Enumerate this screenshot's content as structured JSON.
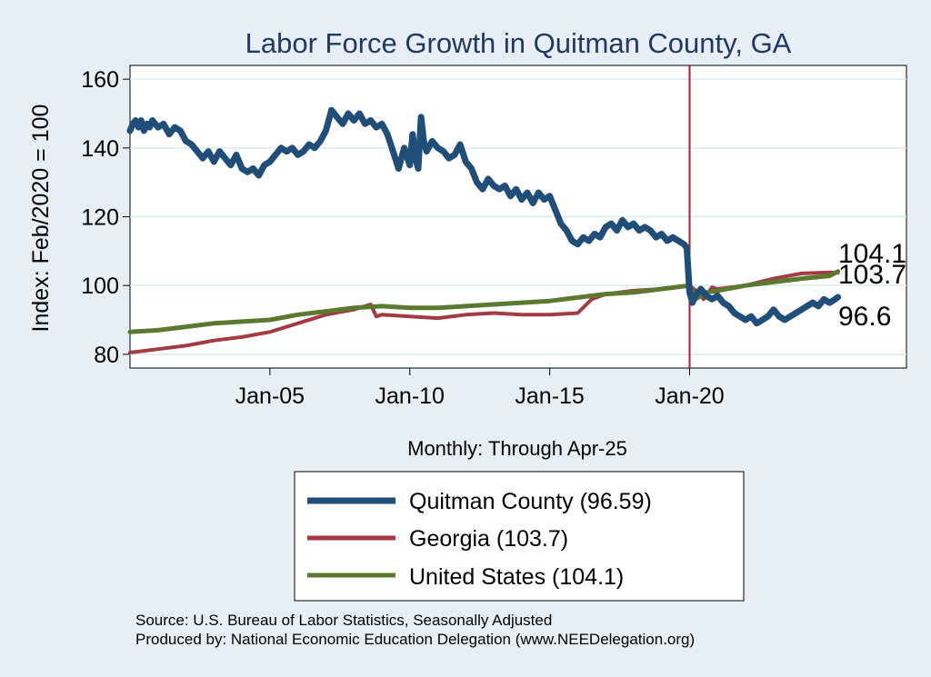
{
  "chart_data": {
    "type": "line",
    "title": "Labor Force Growth in Quitman  County, GA",
    "ylabel": "Index: Feb/2020 = 100",
    "xlabel": "Monthly: Through Apr-25",
    "ylim": [
      76,
      164
    ],
    "xlim": [
      2000.0,
      2027.75
    ],
    "yticks": [
      80,
      100,
      120,
      140,
      160
    ],
    "xticks": [
      {
        "value": 2005.0,
        "label": "Jan-05"
      },
      {
        "value": 2010.0,
        "label": "Jan-10"
      },
      {
        "value": 2015.0,
        "label": "Jan-15"
      },
      {
        "value": 2020.0,
        "label": "Jan-20"
      }
    ],
    "reference_line": {
      "x": 2020.0,
      "color": "#c0142c"
    },
    "series": [
      {
        "name": "Quitman  County",
        "legend": "Quitman  County (96.59)",
        "color": "#1f4e79",
        "width": 7,
        "end_label": "96.6",
        "points": [
          [
            2000.0,
            145
          ],
          [
            2000.1,
            147
          ],
          [
            2000.2,
            148
          ],
          [
            2000.3,
            146
          ],
          [
            2000.4,
            148
          ],
          [
            2000.5,
            145
          ],
          [
            2000.6,
            147
          ],
          [
            2000.7,
            146
          ],
          [
            2000.8,
            148
          ],
          [
            2001.0,
            146
          ],
          [
            2001.2,
            147
          ],
          [
            2001.4,
            144
          ],
          [
            2001.6,
            146
          ],
          [
            2001.8,
            145
          ],
          [
            2002.0,
            142
          ],
          [
            2002.2,
            141
          ],
          [
            2002.4,
            139
          ],
          [
            2002.6,
            137
          ],
          [
            2002.8,
            139
          ],
          [
            2003.0,
            136
          ],
          [
            2003.2,
            139
          ],
          [
            2003.4,
            137
          ],
          [
            2003.6,
            135
          ],
          [
            2003.8,
            138
          ],
          [
            2004.0,
            134
          ],
          [
            2004.2,
            133
          ],
          [
            2004.4,
            134
          ],
          [
            2004.6,
            132
          ],
          [
            2004.8,
            135
          ],
          [
            2005.0,
            136
          ],
          [
            2005.2,
            138
          ],
          [
            2005.4,
            140
          ],
          [
            2005.6,
            139
          ],
          [
            2005.8,
            140
          ],
          [
            2006.0,
            138
          ],
          [
            2006.2,
            139
          ],
          [
            2006.4,
            141
          ],
          [
            2006.6,
            140
          ],
          [
            2006.8,
            142
          ],
          [
            2007.0,
            145
          ],
          [
            2007.2,
            151
          ],
          [
            2007.4,
            149
          ],
          [
            2007.6,
            147
          ],
          [
            2007.8,
            150
          ],
          [
            2008.0,
            148
          ],
          [
            2008.2,
            150
          ],
          [
            2008.4,
            147
          ],
          [
            2008.6,
            148
          ],
          [
            2008.8,
            146
          ],
          [
            2009.0,
            147
          ],
          [
            2009.2,
            144
          ],
          [
            2009.4,
            139
          ],
          [
            2009.6,
            134
          ],
          [
            2009.8,
            140
          ],
          [
            2010.0,
            135
          ],
          [
            2010.1,
            144
          ],
          [
            2010.2,
            137
          ],
          [
            2010.3,
            134
          ],
          [
            2010.4,
            149
          ],
          [
            2010.5,
            142
          ],
          [
            2010.6,
            139
          ],
          [
            2010.8,
            142
          ],
          [
            2011.0,
            140
          ],
          [
            2011.2,
            139
          ],
          [
            2011.4,
            137
          ],
          [
            2011.6,
            138
          ],
          [
            2011.8,
            141
          ],
          [
            2012.0,
            136
          ],
          [
            2012.2,
            134
          ],
          [
            2012.4,
            130
          ],
          [
            2012.6,
            128
          ],
          [
            2012.8,
            131
          ],
          [
            2013.0,
            129
          ],
          [
            2013.2,
            128
          ],
          [
            2013.4,
            129
          ],
          [
            2013.6,
            126
          ],
          [
            2013.8,
            128
          ],
          [
            2014.0,
            125
          ],
          [
            2014.2,
            127
          ],
          [
            2014.4,
            124
          ],
          [
            2014.6,
            127
          ],
          [
            2014.8,
            125
          ],
          [
            2015.0,
            126
          ],
          [
            2015.2,
            122
          ],
          [
            2015.4,
            118
          ],
          [
            2015.6,
            116
          ],
          [
            2015.8,
            113
          ],
          [
            2016.0,
            112
          ],
          [
            2016.2,
            114
          ],
          [
            2016.4,
            113
          ],
          [
            2016.6,
            115
          ],
          [
            2016.8,
            114
          ],
          [
            2017.0,
            117
          ],
          [
            2017.2,
            118
          ],
          [
            2017.4,
            116
          ],
          [
            2017.6,
            119
          ],
          [
            2017.8,
            117
          ],
          [
            2018.0,
            118
          ],
          [
            2018.2,
            116
          ],
          [
            2018.4,
            117
          ],
          [
            2018.6,
            116
          ],
          [
            2018.8,
            114
          ],
          [
            2019.0,
            115
          ],
          [
            2019.2,
            113
          ],
          [
            2019.4,
            114
          ],
          [
            2019.6,
            113
          ],
          [
            2019.8,
            112
          ],
          [
            2019.9,
            111
          ],
          [
            2020.0,
            98
          ],
          [
            2020.1,
            95
          ],
          [
            2020.2,
            97
          ],
          [
            2020.4,
            99
          ],
          [
            2020.6,
            97
          ],
          [
            2020.8,
            96
          ],
          [
            2021.0,
            97
          ],
          [
            2021.2,
            95
          ],
          [
            2021.4,
            94
          ],
          [
            2021.6,
            92
          ],
          [
            2021.8,
            91
          ],
          [
            2022.0,
            90
          ],
          [
            2022.2,
            91
          ],
          [
            2022.4,
            89
          ],
          [
            2022.6,
            90
          ],
          [
            2022.8,
            91
          ],
          [
            2023.0,
            93
          ],
          [
            2023.2,
            91
          ],
          [
            2023.4,
            90
          ],
          [
            2023.6,
            91
          ],
          [
            2023.8,
            92
          ],
          [
            2024.0,
            93
          ],
          [
            2024.2,
            94
          ],
          [
            2024.4,
            95
          ],
          [
            2024.6,
            94
          ],
          [
            2024.8,
            96
          ],
          [
            2025.0,
            95
          ],
          [
            2025.2,
            96
          ],
          [
            2025.3,
            96.6
          ]
        ]
      },
      {
        "name": "Georgia",
        "legend": "Georgia (103.7)",
        "color": "#a33b43",
        "width": 4,
        "end_label": "103.7",
        "points": [
          [
            2000.0,
            80.5
          ],
          [
            2001.0,
            81.5
          ],
          [
            2002.0,
            82.5
          ],
          [
            2003.0,
            84
          ],
          [
            2004.0,
            85
          ],
          [
            2005.0,
            86.5
          ],
          [
            2006.0,
            89
          ],
          [
            2007.0,
            91.5
          ],
          [
            2008.0,
            93
          ],
          [
            2008.6,
            94.5
          ],
          [
            2008.8,
            91
          ],
          [
            2009.0,
            91.5
          ],
          [
            2010.0,
            91
          ],
          [
            2011.0,
            90.5
          ],
          [
            2012.0,
            91.5
          ],
          [
            2013.0,
            92
          ],
          [
            2014.0,
            91.5
          ],
          [
            2015.0,
            91.5
          ],
          [
            2016.0,
            92
          ],
          [
            2016.5,
            96
          ],
          [
            2017.0,
            97.5
          ],
          [
            2018.0,
            98.5
          ],
          [
            2019.0,
            99
          ],
          [
            2020.0,
            100
          ],
          [
            2020.3,
            98
          ],
          [
            2020.5,
            96
          ],
          [
            2020.8,
            99.5
          ],
          [
            2021.0,
            99
          ],
          [
            2022.0,
            100
          ],
          [
            2023.0,
            102
          ],
          [
            2024.0,
            103.5
          ],
          [
            2025.0,
            103.8
          ],
          [
            2025.3,
            103.7
          ]
        ]
      },
      {
        "name": "United States",
        "legend": "United States (104.1)",
        "color": "#5b7a2f",
        "width": 5,
        "end_label": "104.1",
        "points": [
          [
            2000.0,
            86.5
          ],
          [
            2001.0,
            87
          ],
          [
            2002.0,
            88
          ],
          [
            2003.0,
            89
          ],
          [
            2004.0,
            89.5
          ],
          [
            2005.0,
            90
          ],
          [
            2006.0,
            91.5
          ],
          [
            2007.0,
            92.5
          ],
          [
            2008.0,
            93.5
          ],
          [
            2009.0,
            94
          ],
          [
            2010.0,
            93.5
          ],
          [
            2011.0,
            93.5
          ],
          [
            2012.0,
            94
          ],
          [
            2013.0,
            94.5
          ],
          [
            2014.0,
            95
          ],
          [
            2015.0,
            95.5
          ],
          [
            2016.0,
            96.5
          ],
          [
            2017.0,
            97.5
          ],
          [
            2018.0,
            98
          ],
          [
            2019.0,
            99
          ],
          [
            2020.0,
            100
          ],
          [
            2020.2,
            96
          ],
          [
            2020.4,
            97
          ],
          [
            2020.6,
            98
          ],
          [
            2021.0,
            98.5
          ],
          [
            2022.0,
            100
          ],
          [
            2023.0,
            101
          ],
          [
            2024.0,
            102
          ],
          [
            2025.0,
            102.8
          ],
          [
            2025.3,
            104.1
          ]
        ]
      }
    ],
    "source_line1": "Source: U.S. Bureau of Labor Statistics, Seasonally Adjusted",
    "source_line2": "Produced by: National Economic Education Delegation (www.NEEDelegation.org)"
  },
  "colors": {
    "background": "#e8eff4",
    "plot_background": "#ffffff",
    "grid": "#dde8ee",
    "title": "#1f3864"
  }
}
